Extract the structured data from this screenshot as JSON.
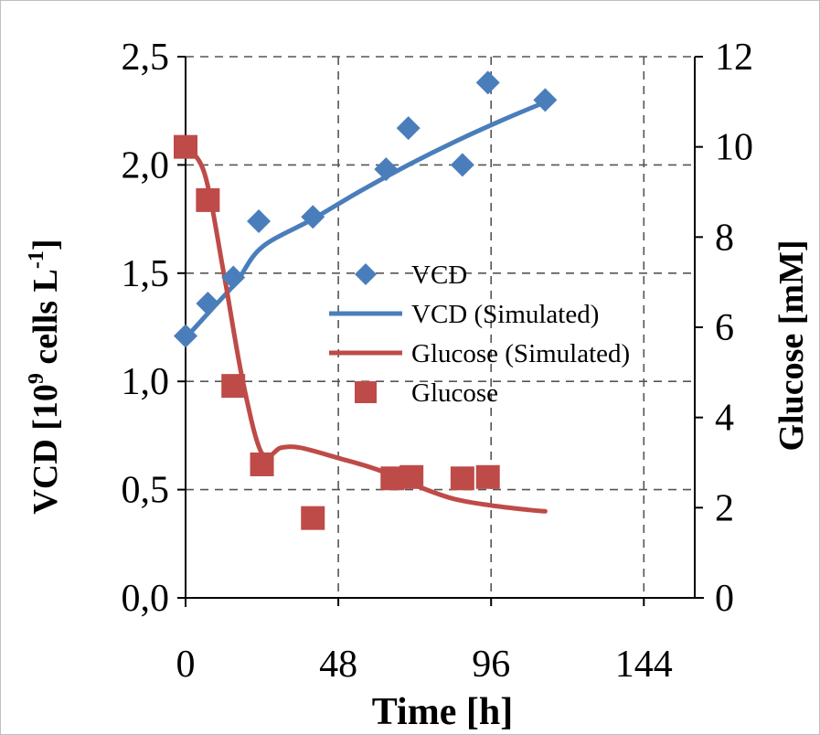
{
  "chart_data": {
    "type": "line",
    "xlabel": "Time [h]",
    "ylabel_left": {
      "main": "VCD [10",
      "sup1": "9",
      "mid": " cells L",
      "sup2": "-1",
      "end": "]"
    },
    "ylabel_right": "Glucose [mM]",
    "xlim": [
      0,
      160
    ],
    "ylim_left": [
      0,
      2.5
    ],
    "ylim_right": [
      0,
      12
    ],
    "x_ticks": [
      0,
      48,
      96,
      144
    ],
    "x_tick_labels": [
      "0",
      "48",
      "96",
      "144"
    ],
    "y_left_ticks": [
      0,
      0.5,
      1.0,
      1.5,
      2.0,
      2.5
    ],
    "y_left_tick_labels": [
      "0,0",
      "0,5",
      "1,0",
      "1,5",
      "2,0",
      "2,5"
    ],
    "y_right_ticks": [
      0,
      2,
      4,
      6,
      8,
      10,
      12
    ],
    "y_right_tick_labels": [
      "0",
      "2",
      "4",
      "6",
      "8",
      "10",
      "12"
    ],
    "grid": true,
    "legend_position": "center",
    "series": [
      {
        "name": "VCD",
        "kind": "scatter",
        "marker": "diamond",
        "axis": "left",
        "color": "#4a7ebb",
        "x": [
          0,
          7,
          15,
          23,
          40,
          63,
          70,
          87,
          95,
          113
        ],
        "y": [
          1.21,
          1.36,
          1.48,
          1.74,
          1.76,
          1.98,
          2.17,
          2.0,
          2.38,
          2.3
        ]
      },
      {
        "name": "VCD (Simulated)",
        "kind": "line",
        "axis": "left",
        "color": "#4a7ebb",
        "x": [
          0,
          8,
          16,
          24,
          40,
          55,
          70,
          85,
          100,
          113
        ],
        "y": [
          1.2,
          1.33,
          1.46,
          1.62,
          1.75,
          1.88,
          2.0,
          2.11,
          2.21,
          2.29
        ]
      },
      {
        "name": "Glucose (Simulated)",
        "kind": "line",
        "axis": "right",
        "color": "#be4b48",
        "x": [
          0,
          6,
          12,
          18,
          24,
          30,
          36,
          48,
          60,
          72,
          84,
          96,
          108,
          113
        ],
        "y": [
          10.0,
          9.4,
          7.2,
          4.8,
          3.2,
          3.33,
          3.33,
          3.1,
          2.85,
          2.5,
          2.2,
          2.05,
          1.95,
          1.92
        ]
      },
      {
        "name": "Glucose",
        "kind": "scatter",
        "marker": "square",
        "axis": "right",
        "color": "#be4b48",
        "x": [
          0,
          7,
          15,
          24,
          40,
          65,
          71,
          87,
          95
        ],
        "y": [
          10.0,
          8.82,
          4.7,
          2.96,
          1.77,
          2.65,
          2.68,
          2.65,
          2.68
        ]
      }
    ],
    "legend_order": [
      "VCD",
      "VCD (Simulated)",
      "Glucose (Simulated)",
      "Glucose"
    ]
  }
}
